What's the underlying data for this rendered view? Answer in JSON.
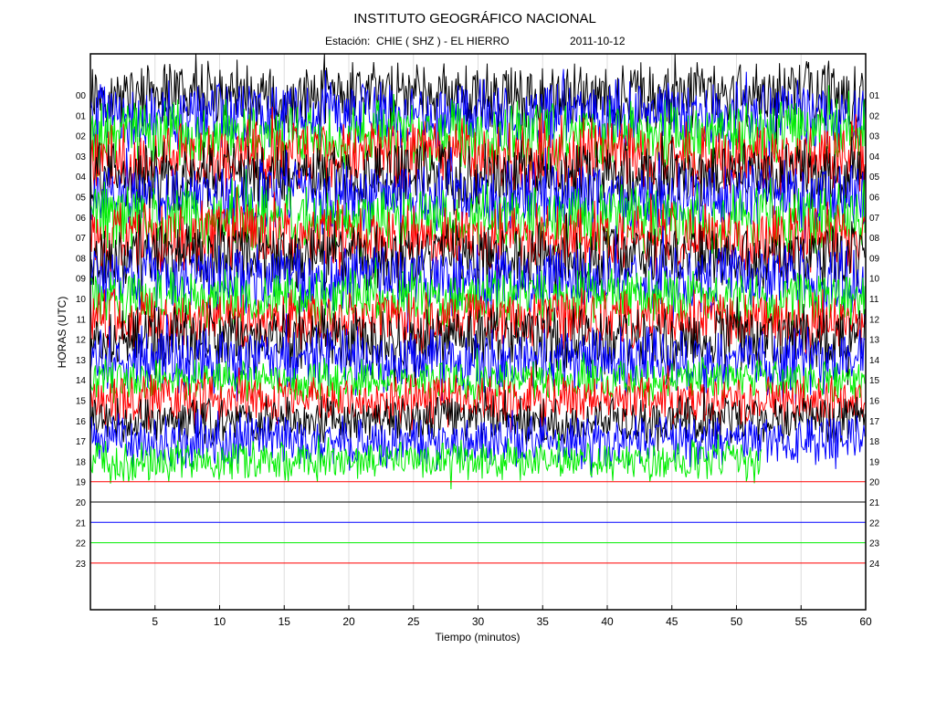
{
  "header": {
    "title": "INSTITUTO GEOGRÁFICO NACIONAL",
    "station_label": "Estación:",
    "station": "CHIE ( SHZ ) - EL HIERRO",
    "date": "2011-10-12"
  },
  "chart_data": {
    "type": "line",
    "title": "INSTITUTO GEOGRÁFICO NACIONAL",
    "subtitle": "Estación:  CHIE ( SHZ ) - EL HIERRO",
    "xlabel": "Tiempo (minutos)",
    "ylabel": "HORAS (UTC)",
    "xlim": [
      0,
      60
    ],
    "x_ticks": [
      5,
      10,
      15,
      20,
      25,
      30,
      35,
      40,
      45,
      50,
      55,
      60
    ],
    "left_labels": [
      "00",
      "01",
      "02",
      "03",
      "04",
      "05",
      "06",
      "07",
      "08",
      "09",
      "10",
      "11",
      "12",
      "13",
      "14",
      "15",
      "16",
      "17",
      "18",
      "19",
      "20",
      "21",
      "22",
      "23"
    ],
    "right_labels": [
      "01",
      "02",
      "03",
      "04",
      "05",
      "06",
      "07",
      "08",
      "09",
      "10",
      "11",
      "12",
      "13",
      "14",
      "15",
      "16",
      "17",
      "18",
      "19",
      "20",
      "21",
      "22",
      "23",
      "24"
    ],
    "trace_colors": [
      "#000000",
      "#0000ff",
      "#00ee00",
      "#ff0000"
    ],
    "grid": true,
    "series": [
      {
        "hour": 0,
        "end_minute": 60,
        "amplitude": 1.9
      },
      {
        "hour": 1,
        "end_minute": 60,
        "amplitude": 1.9
      },
      {
        "hour": 2,
        "end_minute": 60,
        "amplitude": 1.9
      },
      {
        "hour": 3,
        "end_minute": 60,
        "amplitude": 1.9
      },
      {
        "hour": 4,
        "end_minute": 60,
        "amplitude": 1.9
      },
      {
        "hour": 5,
        "end_minute": 60,
        "amplitude": 1.9
      },
      {
        "hour": 6,
        "end_minute": 60,
        "amplitude": 1.9
      },
      {
        "hour": 7,
        "end_minute": 60,
        "amplitude": 1.9
      },
      {
        "hour": 8,
        "end_minute": 60,
        "amplitude": 1.9
      },
      {
        "hour": 9,
        "end_minute": 60,
        "amplitude": 1.9
      },
      {
        "hour": 10,
        "end_minute": 60,
        "amplitude": 1.6
      },
      {
        "hour": 11,
        "end_minute": 60,
        "amplitude": 1.6
      },
      {
        "hour": 12,
        "end_minute": 60,
        "amplitude": 1.8
      },
      {
        "hour": 13,
        "end_minute": 60,
        "amplitude": 1.8
      },
      {
        "hour": 14,
        "end_minute": 60,
        "amplitude": 1.1
      },
      {
        "hour": 15,
        "end_minute": 60,
        "amplitude": 1.4
      },
      {
        "hour": 16,
        "end_minute": 60,
        "amplitude": 1.3
      },
      {
        "hour": 17,
        "end_minute": 60,
        "amplitude": 1.4
      },
      {
        "hour": 18,
        "end_minute": 52,
        "amplitude": 1.1
      },
      {
        "hour": 19,
        "end_minute": 60,
        "amplitude": 0
      },
      {
        "hour": 20,
        "end_minute": 60,
        "amplitude": 0
      },
      {
        "hour": 21,
        "end_minute": 60,
        "amplitude": 0
      },
      {
        "hour": 22,
        "end_minute": 60,
        "amplitude": 0
      },
      {
        "hour": 23,
        "end_minute": 60,
        "amplitude": 0
      }
    ]
  }
}
